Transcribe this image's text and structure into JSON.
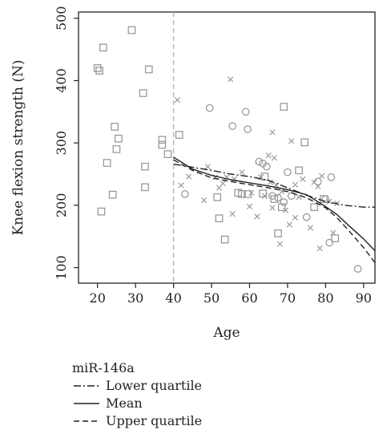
{
  "chart_data": {
    "type": "scatter",
    "xlabel": "Age",
    "ylabel": "Knee flexion strength (N)",
    "xlim": [
      15,
      93
    ],
    "ylim": [
      75,
      510
    ],
    "x_ticks": [
      20,
      30,
      40,
      50,
      60,
      70,
      80,
      90
    ],
    "y_ticks": [
      100,
      200,
      300,
      400,
      500
    ],
    "grid": false,
    "vertical_reference_line": 40,
    "colors": {
      "points": "#9a9a9a",
      "reference_line": "#b8b8b8",
      "curves": "#222222"
    },
    "points": {
      "squares": [
        [
          20,
          420
        ],
        [
          20.5,
          416
        ],
        [
          21,
          190
        ],
        [
          21.5,
          453
        ],
        [
          22.5,
          268
        ],
        [
          24,
          217
        ],
        [
          24.5,
          326
        ],
        [
          25,
          290
        ],
        [
          25.5,
          307
        ],
        [
          29,
          481
        ],
        [
          32,
          380
        ],
        [
          32.5,
          262
        ],
        [
          32.5,
          229
        ],
        [
          33.5,
          418
        ],
        [
          37,
          305
        ],
        [
          37,
          297
        ],
        [
          38.5,
          282
        ],
        [
          41.5,
          313
        ],
        [
          51.5,
          213
        ],
        [
          52,
          179
        ],
        [
          53.5,
          145
        ],
        [
          57,
          220
        ],
        [
          58,
          218
        ],
        [
          59.5,
          218
        ],
        [
          63.5,
          219
        ],
        [
          64,
          246
        ],
        [
          66.5,
          210
        ],
        [
          67.5,
          155
        ],
        [
          68.5,
          197
        ],
        [
          69,
          358
        ],
        [
          73,
          256
        ],
        [
          74.5,
          301
        ],
        [
          77,
          197
        ],
        [
          79.5,
          210
        ],
        [
          82.5,
          147
        ]
      ],
      "circles": [
        [
          43,
          218
        ],
        [
          49.5,
          356
        ],
        [
          55.5,
          327
        ],
        [
          59,
          350
        ],
        [
          59.5,
          322
        ],
        [
          62.5,
          270
        ],
        [
          63.5,
          267
        ],
        [
          64.5,
          262
        ],
        [
          66,
          215
        ],
        [
          67.5,
          212
        ],
        [
          69,
          205
        ],
        [
          70,
          253
        ],
        [
          71,
          215
        ],
        [
          75,
          181
        ],
        [
          78,
          238
        ],
        [
          80,
          210
        ],
        [
          81,
          140
        ],
        [
          81.5,
          245
        ],
        [
          88.5,
          98
        ]
      ],
      "crosses": [
        [
          41,
          369
        ],
        [
          42,
          232
        ],
        [
          44,
          246
        ],
        [
          48,
          208
        ],
        [
          49,
          262
        ],
        [
          51,
          245
        ],
        [
          52,
          228
        ],
        [
          53,
          235
        ],
        [
          54,
          245
        ],
        [
          55,
          402
        ],
        [
          55.5,
          186
        ],
        [
          56,
          242
        ],
        [
          58,
          253
        ],
        [
          60,
          198
        ],
        [
          60.5,
          220
        ],
        [
          62,
          182
        ],
        [
          63,
          245
        ],
        [
          64,
          215
        ],
        [
          65,
          280
        ],
        [
          65.5,
          237
        ],
        [
          66,
          317
        ],
        [
          66,
          196
        ],
        [
          66.5,
          276
        ],
        [
          67,
          232
        ],
        [
          68,
          138
        ],
        [
          68.5,
          222
        ],
        [
          69.5,
          192
        ],
        [
          70.5,
          169
        ],
        [
          71,
          303
        ],
        [
          72,
          180
        ],
        [
          72,
          233
        ],
        [
          73,
          213
        ],
        [
          74,
          242
        ],
        [
          76,
          164
        ],
        [
          77,
          237
        ],
        [
          78,
          230
        ],
        [
          78.5,
          131
        ],
        [
          79,
          247
        ],
        [
          81,
          206
        ],
        [
          82,
          156
        ],
        [
          83,
          203
        ]
      ]
    },
    "series": [
      {
        "name": "Lower quartile",
        "style": "dashdot",
        "x": [
          40,
          45,
          50,
          55,
          60,
          65,
          70,
          75,
          80,
          85,
          90,
          93
        ],
        "y": [
          266,
          261,
          256,
          250,
          246,
          240,
          228,
          216,
          206,
          200,
          197,
          197
        ]
      },
      {
        "name": "Mean",
        "style": "solid",
        "x": [
          40,
          45,
          50,
          55,
          60,
          65,
          70,
          75,
          80,
          83,
          86,
          90,
          93
        ],
        "y": [
          277,
          258,
          248,
          241,
          236,
          231,
          225,
          217,
          198,
          185,
          168,
          146,
          127
        ]
      },
      {
        "name": "Upper quartile",
        "style": "dashed",
        "x": [
          40,
          45,
          50,
          55,
          60,
          65,
          70,
          75,
          80,
          83,
          86,
          90,
          93
        ],
        "y": [
          273,
          256,
          244,
          238,
          233,
          228,
          222,
          212,
          196,
          180,
          160,
          132,
          108
        ]
      }
    ],
    "legend": {
      "title": "miR-146a",
      "placement": "below-left",
      "entries": [
        "Lower quartile",
        "Mean",
        "Upper quartile"
      ]
    }
  }
}
